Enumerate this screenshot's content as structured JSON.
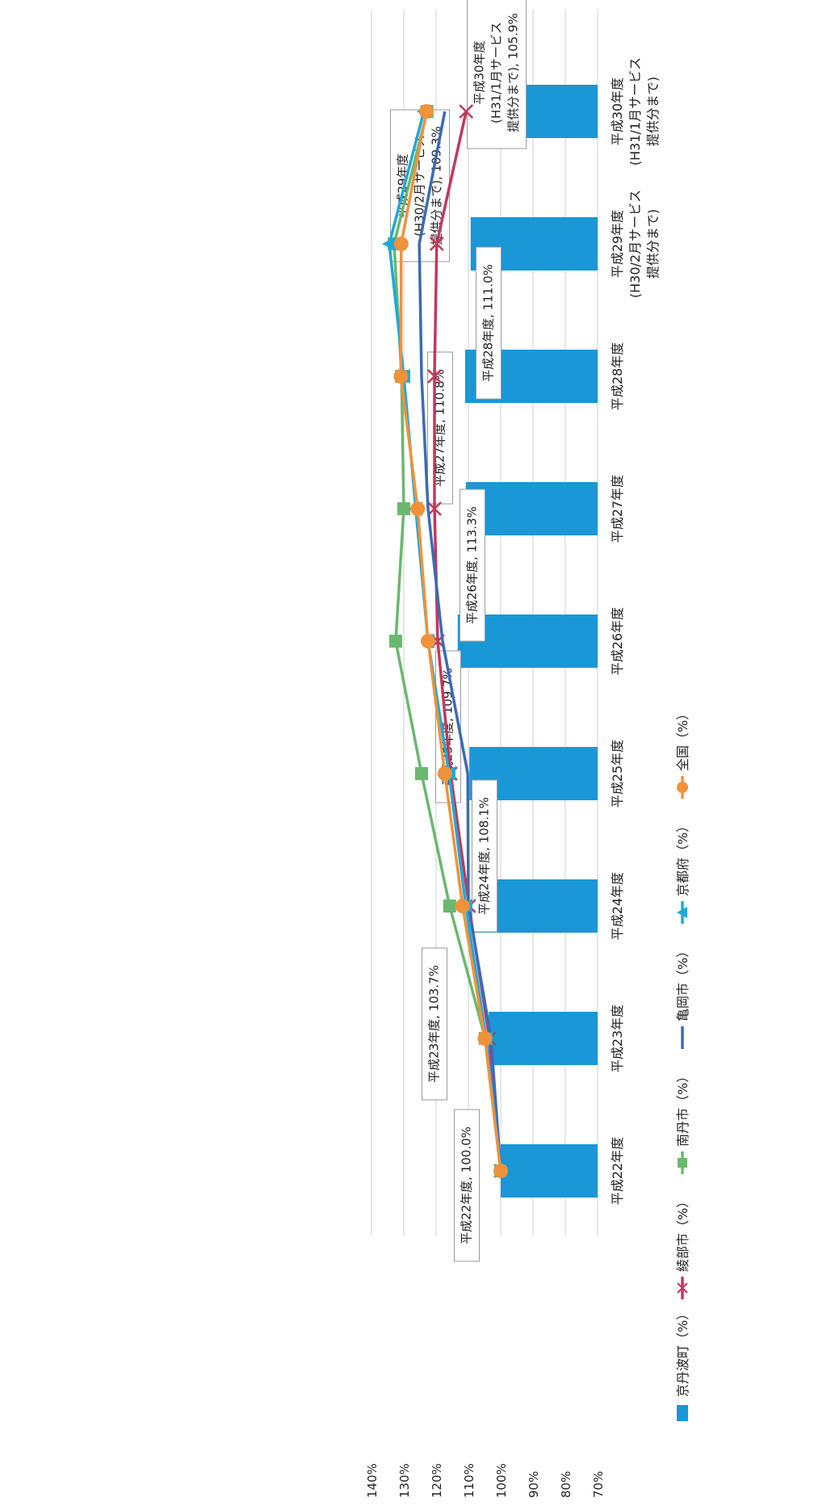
{
  "chart_data": {
    "type": "bar",
    "orientation": "rotated-90",
    "title": "",
    "xlabel": "",
    "ylabel": "",
    "ylim": [
      70,
      140
    ],
    "yticks": [
      "70%",
      "80%",
      "90%",
      "100%",
      "110%",
      "120%",
      "130%",
      "140%"
    ],
    "grid": true,
    "legend_position": "bottom",
    "categories": [
      [
        "平成22年度"
      ],
      [
        "平成23年度"
      ],
      [
        "平成24年度"
      ],
      [
        "平成25年度"
      ],
      [
        "平成26年度"
      ],
      [
        "平成27年度"
      ],
      [
        "平成28年度"
      ],
      [
        "平成29年度",
        "(H30/2月サービス",
        "提供分まで)"
      ],
      [
        "平成30年度",
        "(H31/1月サービス",
        "提供分まで)"
      ]
    ],
    "series": [
      {
        "name": "京丹波町（%）",
        "kind": "bar",
        "color": "#1a97d6",
        "marker": "",
        "values": [
          100.0,
          103.7,
          108.1,
          109.7,
          113.3,
          110.8,
          111.0,
          109.3,
          105.9
        ]
      },
      {
        "name": "綾部市（%）",
        "kind": "line",
        "color": "#c0395b",
        "marker": "x",
        "values": [
          100.0,
          103.5,
          109.8,
          115.5,
          119.5,
          120.5,
          120.5,
          119.8,
          110.7
        ]
      },
      {
        "name": "南丹市（%）",
        "kind": "line",
        "color": "#6ab86f",
        "marker": "square",
        "values": [
          100.0,
          104.8,
          115.8,
          124.5,
          132.5,
          130.0,
          130.7,
          133.0,
          122.8
        ]
      },
      {
        "name": "亀岡市（%）",
        "kind": "line",
        "color": "#3c6ab8",
        "marker": "",
        "values": [
          100.0,
          103.0,
          110.0,
          110.2,
          118.0,
          122.5,
          124.5,
          125.2,
          117.3
        ]
      },
      {
        "name": "京都府（%）",
        "kind": "line",
        "color": "#21a8d8",
        "marker": "triangle",
        "values": [
          100.0,
          104.5,
          110.8,
          116.0,
          122.5,
          126.3,
          130.0,
          134.5,
          123.8
        ]
      },
      {
        "name": "全国（%）",
        "kind": "line",
        "color": "#f0923a",
        "marker": "circle",
        "values": [
          100.0,
          104.9,
          111.8,
          117.3,
          122.5,
          125.7,
          130.9,
          130.8,
          123.0
        ]
      }
    ],
    "data_labels": [
      [
        "平成22年度, 100.0%"
      ],
      [
        "平成23年度, 103.7%"
      ],
      [
        "平成24年度, 108.1%"
      ],
      [
        "平成25年度, 109.7%"
      ],
      [
        "平成26年度, 113.3%"
      ],
      [
        "平成27年度, 110.8%"
      ],
      [
        "平成28年度, 111.0%"
      ],
      [
        "平成29年度",
        "(H30/2月サービス",
        "提供分まで), 109.3%"
      ],
      [
        "平成30年度",
        "(H31/1月サービス",
        "提供分まで), 105.9%"
      ]
    ]
  }
}
